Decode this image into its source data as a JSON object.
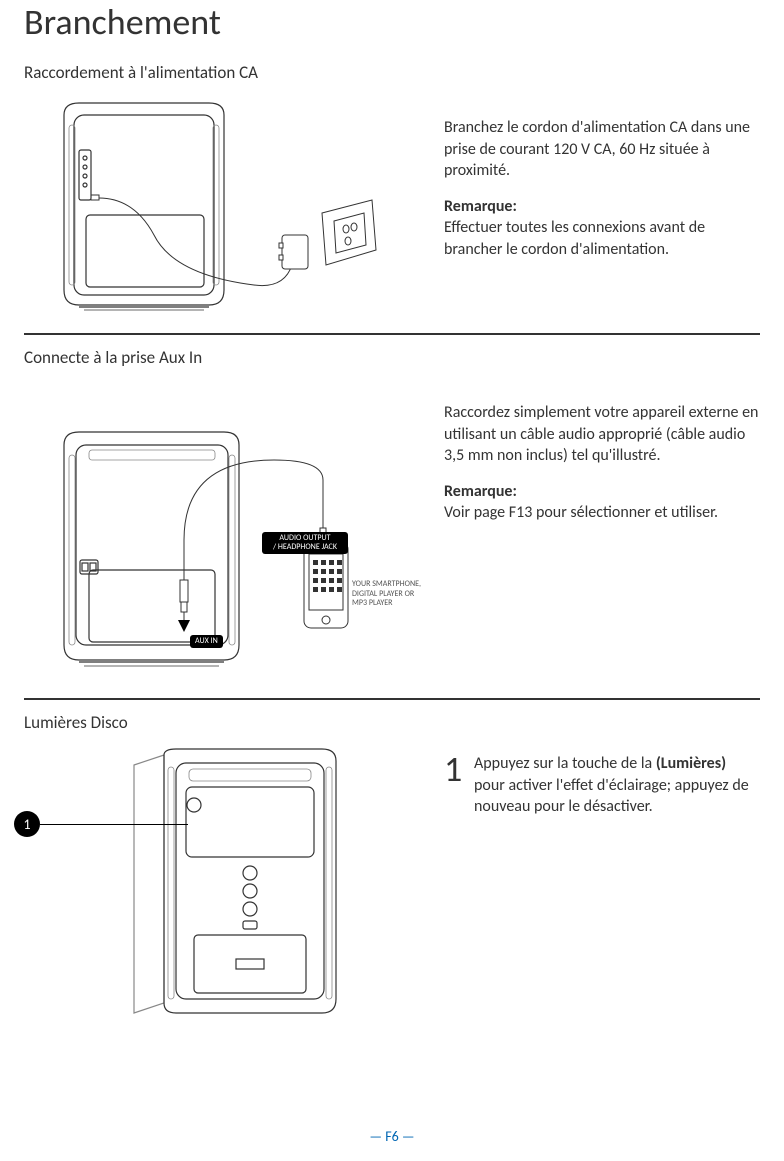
{
  "title": "Branchement",
  "page_marker": "— F6 —",
  "colors": {
    "text": "#333333",
    "accent": "#0066b3",
    "rule": "#333333",
    "bg": "#ffffff"
  },
  "sections": {
    "ac": {
      "heading": "Raccordement à l'alimentation CA",
      "body": "Branchez le cordon d'alimentation CA dans une prise de courant 120 V CA, 60 Hz située à proximité.",
      "note_label": "Remarque:",
      "note_body": "Effectuer toutes les connexions avant de brancher le cordon d'alimentation."
    },
    "aux": {
      "heading": "Connecte à la prise Aux In",
      "body": "Raccordez simplement votre appareil externe en utilisant un câble audio approprié (câble audio 3,5 mm non inclus) tel qu'illustré.",
      "note_label": "Remarque:",
      "note_body": "Voir page F13 pour sélectionner et utiliser.",
      "labels": {
        "audio_output": "AUDIO OUTPUT\n/ HEADPHONE JACK",
        "aux_in": "AUX IN",
        "device_caption": "YOUR SMARTPHONE,\nDIGITAL PLAYER OR\nMP3 PLAYER"
      }
    },
    "disco": {
      "heading": "Lumières Disco",
      "step_number": "1",
      "step_text_before": "Appuyez sur la touche de la ",
      "step_text_bold": "(Lumières)",
      "step_text_after": " pour activer l'effet d'éclairage; appuyez de nouveau pour le désactiver.",
      "callout_badge": "1"
    }
  }
}
